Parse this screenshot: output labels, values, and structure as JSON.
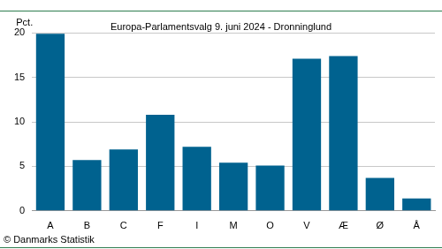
{
  "chart_data": {
    "type": "bar",
    "title": "Europa-Parlamentsvalg 9. juni 2024 - Dronninglund",
    "y_label": "Pct.",
    "source": "© Danmarks Statistik",
    "categories": [
      "A",
      "B",
      "C",
      "F",
      "I",
      "M",
      "O",
      "V",
      "Æ",
      "Ø",
      "Å"
    ],
    "values": [
      19.9,
      5.7,
      6.9,
      10.8,
      7.2,
      5.4,
      5.1,
      17.1,
      17.4,
      3.7,
      1.4
    ],
    "color": "#00628f",
    "ylim": [
      0,
      20
    ],
    "yticks": [
      0,
      5,
      10,
      15,
      20
    ],
    "grid": true
  }
}
